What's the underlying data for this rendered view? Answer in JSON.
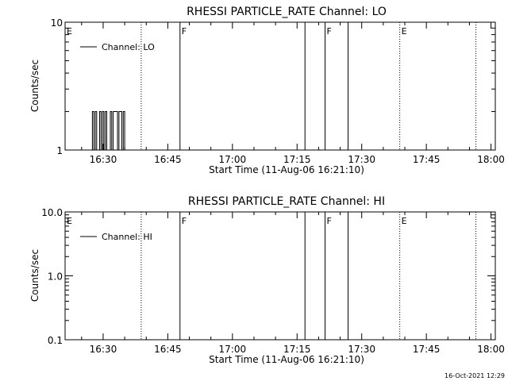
{
  "footer_date": "16-Oct-2021 12:29",
  "chart_data": [
    {
      "type": "line",
      "title": "RHESSI PARTICLE_RATE Channel: LO",
      "xlabel": "Start Time (11-Aug-06 16:21:10)",
      "ylabel": "Counts/sec",
      "y_scale": "log",
      "ylim": [
        1,
        10
      ],
      "y_ticks": [
        {
          "value": 1,
          "label": "1"
        },
        {
          "value": 10,
          "label": "10"
        }
      ],
      "xlim": [
        "16:21:10",
        "18:01:00"
      ],
      "x_ticks": [
        "16:30",
        "16:45",
        "17:00",
        "17:15",
        "17:30",
        "17:45",
        "18:00"
      ],
      "legend": {
        "entries": [
          "Channel: LO"
        ],
        "position": "top-left"
      },
      "markers": [
        {
          "time": "16:21:10",
          "label": "E",
          "style": "dotted"
        },
        {
          "time": "16:38:50",
          "label": "",
          "style": "dotted"
        },
        {
          "time": "16:47:50",
          "label": "F",
          "style": "solid"
        },
        {
          "time": "17:16:50",
          "label": "",
          "style": "solid"
        },
        {
          "time": "17:21:30",
          "label": "F",
          "style": "solid"
        },
        {
          "time": "17:26:50",
          "label": "",
          "style": "solid"
        },
        {
          "time": "17:38:50",
          "label": "E",
          "style": "dotted"
        },
        {
          "time": "17:56:30",
          "label": "",
          "style": "dotted"
        }
      ],
      "series": [
        {
          "name": "Channel: LO",
          "points": [
            [
              "16:26:30",
              1
            ],
            [
              "16:27:10",
              1
            ],
            [
              "16:27:30",
              2
            ],
            [
              "16:27:50",
              1
            ],
            [
              "16:28:10",
              2
            ],
            [
              "16:28:30",
              1
            ],
            [
              "16:28:50",
              1
            ],
            [
              "16:29:10",
              2
            ],
            [
              "16:29:30",
              1
            ],
            [
              "16:29:50",
              2
            ],
            [
              "16:30:10",
              1
            ],
            [
              "16:30:30",
              2
            ],
            [
              "16:30:50",
              1
            ],
            [
              "16:31:20",
              1
            ],
            [
              "16:31:40",
              2
            ],
            [
              "16:32:00",
              1
            ],
            [
              "16:32:20",
              2
            ],
            [
              "16:33:00",
              2
            ],
            [
              "16:33:20",
              1
            ],
            [
              "16:33:40",
              2
            ],
            [
              "16:34:00",
              2
            ],
            [
              "16:34:20",
              1
            ],
            [
              "16:34:40",
              2
            ],
            [
              "16:35:00",
              1
            ],
            [
              "16:35:20",
              1
            ]
          ]
        }
      ]
    },
    {
      "type": "line",
      "title": "RHESSI PARTICLE_RATE Channel: HI",
      "xlabel": "Start Time (11-Aug-06 16:21:10)",
      "ylabel": "Counts/sec",
      "y_scale": "log",
      "ylim": [
        0.1,
        10
      ],
      "y_ticks": [
        {
          "value": 0.1,
          "label": "0.1"
        },
        {
          "value": 1,
          "label": "1.0"
        },
        {
          "value": 10,
          "label": "10.0"
        }
      ],
      "xlim": [
        "16:21:10",
        "18:01:00"
      ],
      "x_ticks": [
        "16:30",
        "16:45",
        "17:00",
        "17:15",
        "17:30",
        "17:45",
        "18:00"
      ],
      "legend": {
        "entries": [
          "Channel: HI"
        ],
        "position": "top-left"
      },
      "markers": [
        {
          "time": "16:21:10",
          "label": "E",
          "style": "dotted"
        },
        {
          "time": "16:38:50",
          "label": "",
          "style": "dotted"
        },
        {
          "time": "16:47:50",
          "label": "F",
          "style": "solid"
        },
        {
          "time": "17:16:50",
          "label": "",
          "style": "solid"
        },
        {
          "time": "17:21:30",
          "label": "F",
          "style": "solid"
        },
        {
          "time": "17:26:50",
          "label": "",
          "style": "solid"
        },
        {
          "time": "17:38:50",
          "label": "E",
          "style": "dotted"
        },
        {
          "time": "17:56:30",
          "label": "",
          "style": "dotted"
        }
      ],
      "series": [
        {
          "name": "Channel: HI",
          "points": []
        }
      ]
    }
  ]
}
